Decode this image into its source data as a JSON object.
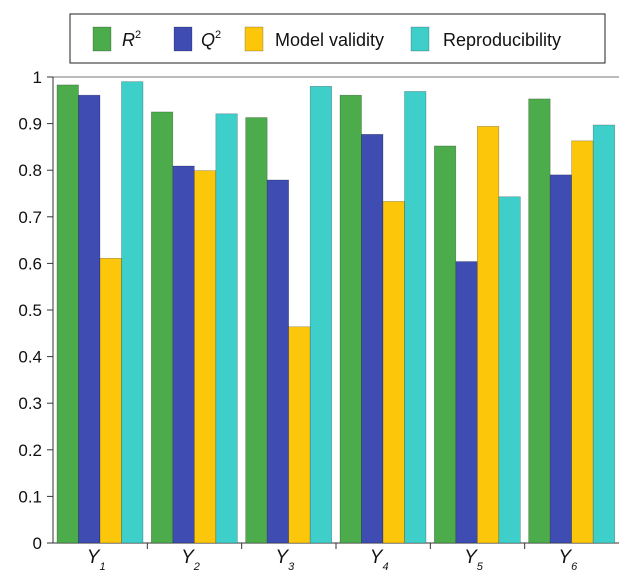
{
  "chart_data": {
    "type": "bar",
    "categories": [
      {
        "main": "Y",
        "sub": "1"
      },
      {
        "main": "Y",
        "sub": "2"
      },
      {
        "main": "Y",
        "sub": "3"
      },
      {
        "main": "Y",
        "sub": "4"
      },
      {
        "main": "Y",
        "sub": "5"
      },
      {
        "main": "Y",
        "sub": "6"
      }
    ],
    "series": [
      {
        "name": "R",
        "name_sup": "2",
        "color": "#4cac4c",
        "values": [
          0.983,
          0.925,
          0.913,
          0.961,
          0.852,
          0.953
        ]
      },
      {
        "name": "Q",
        "name_sup": "2",
        "color": "#3f4db3",
        "values": [
          0.961,
          0.809,
          0.779,
          0.877,
          0.604,
          0.79
        ]
      },
      {
        "name": "Model validity",
        "color": "#fcc70b",
        "values": [
          0.611,
          0.799,
          0.464,
          0.733,
          0.894,
          0.863
        ]
      },
      {
        "name": "Reproducibility",
        "color": "#3fcfcb",
        "values": [
          0.99,
          0.921,
          0.98,
          0.969,
          0.743,
          0.897
        ]
      }
    ],
    "ylim": [
      0,
      1
    ],
    "yticks": [
      "0",
      "0.1",
      "0.2",
      "0.3",
      "0.4",
      "0.5",
      "0.6",
      "0.7",
      "0.8",
      "0.9",
      "1"
    ],
    "legend_position": "top",
    "grid": false
  }
}
